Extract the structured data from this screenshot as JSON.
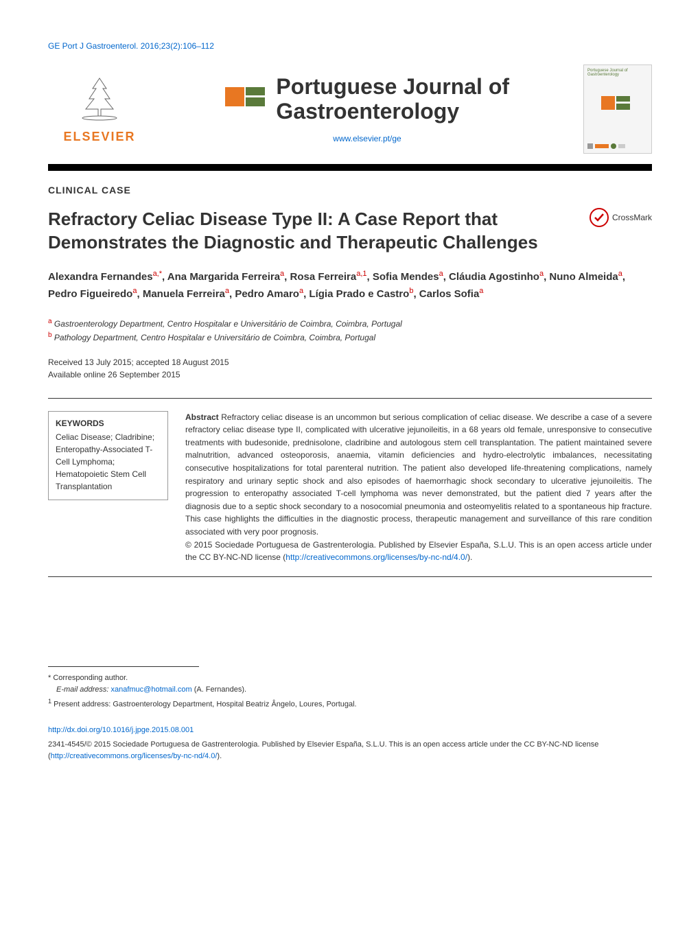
{
  "header": {
    "citation": "GE Port J Gastroenterol. 2016;23(2):106–112",
    "journal_title_line1": "Portuguese Journal of",
    "journal_title_line2": "Gastroenterology",
    "journal_url": "www.elsevier.pt/ge",
    "elsevier": "ELSEVIER",
    "ge_colors": {
      "orange": "#e87722",
      "green": "#5a7a3a"
    }
  },
  "section_type": "CLINICAL CASE",
  "title": "Refractory Celiac Disease Type II: A Case Report that Demonstrates the Diagnostic and Therapeutic Challenges",
  "crossmark_label": "CrossMark",
  "authors_html": "Alexandra Fernandes<sup>a,*</sup>, Ana Margarida Ferreira<sup>a</sup>, Rosa Ferreira<sup>a,1</sup>, Sofia Mendes<sup>a</sup>, Cláudia Agostinho<sup>a</sup>, Nuno Almeida<sup>a</sup>, Pedro Figueiredo<sup>a</sup>, Manuela Ferreira<sup>a</sup>, Pedro Amaro<sup>a</sup>, Lígia Prado e Castro<sup>b</sup>, Carlos Sofia<sup>a</sup>",
  "affiliations": {
    "a": "Gastroenterology Department, Centro Hospitalar e Universitário de Coimbra, Coimbra, Portugal",
    "b": "Pathology Department, Centro Hospitalar e Universitário de Coimbra, Coimbra, Portugal"
  },
  "dates": {
    "received_accepted": "Received 13 July 2015; accepted 18 August 2015",
    "online": "Available online 26 September 2015"
  },
  "keywords": {
    "heading": "KEYWORDS",
    "items": "Celiac Disease; Cladribine; Enteropathy-Associated T-Cell Lymphoma; Hematopoietic Stem Cell Transplantation"
  },
  "abstract": {
    "heading": "Abstract",
    "body": "Refractory celiac disease is an uncommon but serious complication of celiac disease. We describe a case of a severe refractory celiac disease type II, complicated with ulcerative jejunoileitis, in a 68 years old female, unresponsive to consecutive treatments with budesonide, prednisolone, cladribine and autologous stem cell transplantation. The patient maintained severe malnutrition, advanced osteoporosis, anaemia, vitamin deficiencies and hydro-electrolytic imbalances, necessitating consecutive hospitalizations for total parenteral nutrition. The patient also developed life-threatening complications, namely respiratory and urinary septic shock and also episodes of haemorrhagic shock secondary to ulcerative jejunoileitis. The progression to enteropathy associated T-cell lymphoma was never demonstrated, but the patient died 7 years after the diagnosis due to a septic shock secondary to a nosocomial pneumonia and osteomyelitis related to a spontaneous hip fracture. This case highlights the difficulties in the diagnostic process, therapeutic management and surveillance of this rare condition associated with very poor prognosis.",
    "copyright": "© 2015 Sociedade Portuguesa de Gastrenterologia. Published by Elsevier España, S.L.U. This is an open access article under the CC BY-NC-ND license (",
    "license_url": "http://creativecommons.org/licenses/by-nc-nd/4.0/",
    "copyright_close": ")."
  },
  "footnotes": {
    "corresponding": "* Corresponding author.",
    "email_label": "E-mail address: ",
    "email": "xanafmuc@hotmail.com",
    "email_author": " (A. Fernandes).",
    "present_address": "Present address: Gastroenterology Department, Hospital Beatriz Ângelo, Loures, Portugal."
  },
  "footer": {
    "doi": "http://dx.doi.org/10.1016/j.jpge.2015.08.001",
    "issn_copyright": "2341-4545/© 2015 Sociedade Portuguesa de Gastrenterologia. Published by Elsevier España, S.L.U. This is an open access article under the CC BY-NC-ND license (",
    "license_url": "http://creativecommons.org/licenses/by-nc-nd/4.0/",
    "close": ")."
  },
  "colors": {
    "link": "#0066cc",
    "text": "#333333",
    "accent": "#c00000",
    "elsevier_orange": "#e87722"
  }
}
